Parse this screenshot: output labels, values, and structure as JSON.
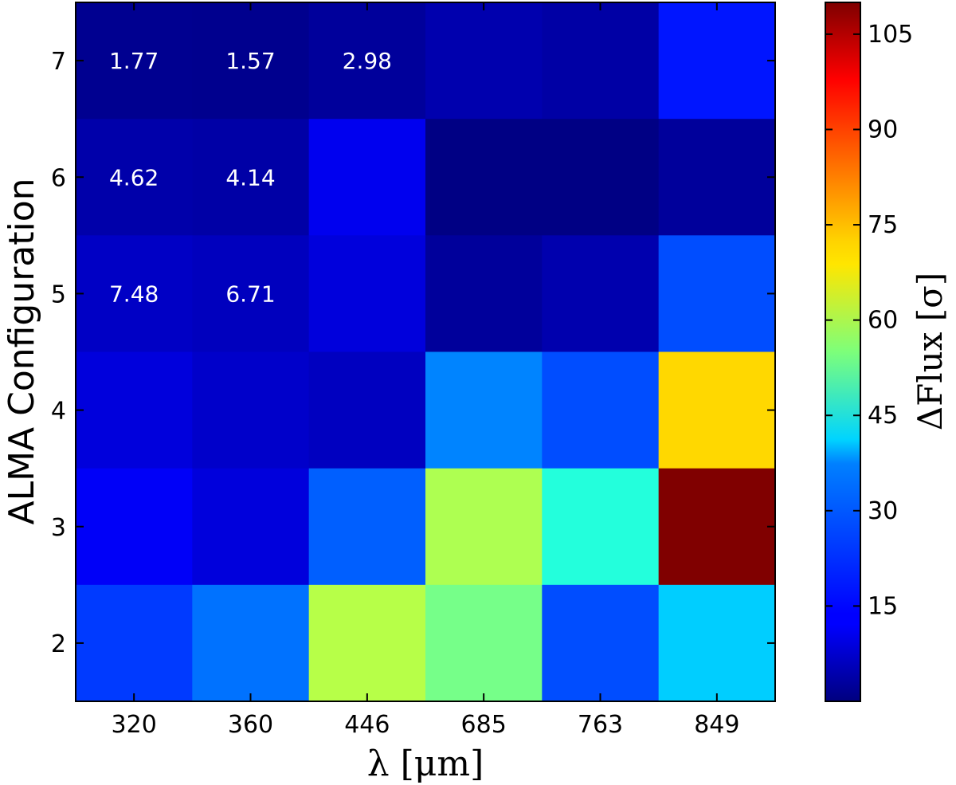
{
  "chart_data": {
    "type": "heatmap",
    "x_categories": [
      "320",
      "360",
      "446",
      "685",
      "763",
      "849"
    ],
    "y_categories": [
      "2",
      "3",
      "4",
      "5",
      "6",
      "7"
    ],
    "xlabel": "λ [μm]",
    "ylabel": "ALMA Configuration",
    "colorbar": {
      "label": "ΔFlux [σ]",
      "ticks": [
        "15",
        "30",
        "45",
        "60",
        "75",
        "90",
        "105"
      ],
      "range": [
        0,
        110
      ],
      "colormap": "jet"
    },
    "rows": [
      {
        "config": "7",
        "values": [
          1.77,
          1.57,
          2.98,
          5,
          4,
          16
        ]
      },
      {
        "config": "6",
        "values": [
          4.62,
          4.14,
          12,
          0.5,
          0.5,
          3
        ]
      },
      {
        "config": "5",
        "values": [
          7.48,
          6.71,
          10,
          3,
          5,
          22
        ]
      },
      {
        "config": "4",
        "values": [
          10,
          8,
          7,
          28,
          22,
          73
        ]
      },
      {
        "config": "3",
        "values": [
          13,
          10,
          24,
          60,
          45,
          110
        ]
      },
      {
        "config": "2",
        "values": [
          20,
          26,
          61,
          54,
          22,
          36
        ]
      }
    ],
    "annotations": [
      {
        "row": "7",
        "col": "320",
        "text": "1.77"
      },
      {
        "row": "7",
        "col": "360",
        "text": "1.57"
      },
      {
        "row": "7",
        "col": "446",
        "text": "2.98"
      },
      {
        "row": "6",
        "col": "320",
        "text": "4.62"
      },
      {
        "row": "6",
        "col": "360",
        "text": "4.14"
      },
      {
        "row": "5",
        "col": "320",
        "text": "7.48"
      },
      {
        "row": "5",
        "col": "360",
        "text": "6.71"
      }
    ]
  }
}
